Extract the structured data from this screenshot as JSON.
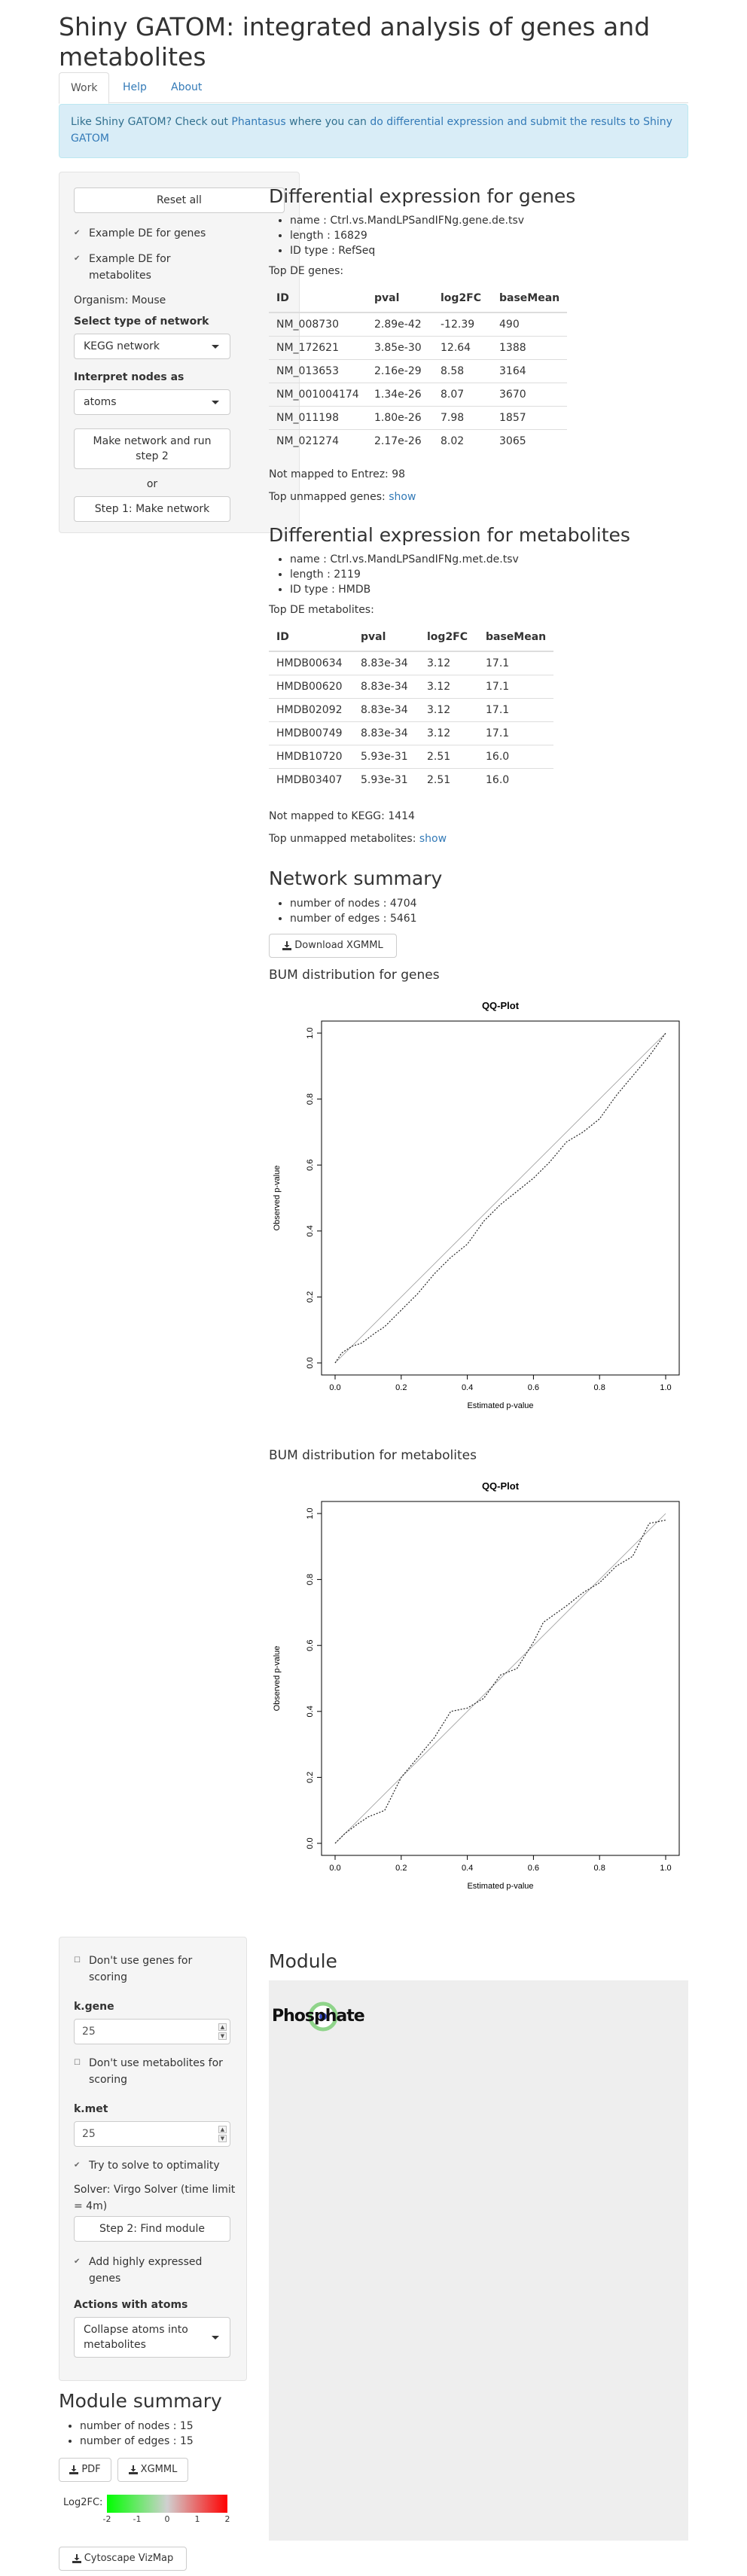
{
  "app": {
    "title": "Shiny GATOM: integrated analysis of genes and metabolites"
  },
  "tabs": [
    {
      "label": "Work"
    },
    {
      "label": "Help"
    },
    {
      "label": "About"
    }
  ],
  "alert": {
    "text_before": "Like Shiny GATOM? Check out ",
    "link1": "Phantasus",
    "text_middle": " where you can ",
    "link2": "do differential expression and submit the results to Shiny GATOM"
  },
  "sidebar1": {
    "reset_label": "Reset all",
    "example_genes": "Example DE for genes",
    "example_metabolites": "Example DE for metabolites",
    "organism": "Organism: Mouse",
    "network_type_label": "Select type of network",
    "network_type_value": "KEGG network",
    "interpret_label": "Interpret nodes as",
    "interpret_value": "atoms",
    "make_run_label": "Make network and run step 2",
    "or_text": "or",
    "step1_label": "Step 1: Make network"
  },
  "genes": {
    "heading": "Differential expression for genes",
    "info": [
      "name : Ctrl.vs.MandLPSandIFNg.gene.de.tsv",
      "length : 16829",
      "ID type : RefSeq"
    ],
    "top_label": "Top DE genes:",
    "columns": [
      "ID",
      "pval",
      "log2FC",
      "baseMean"
    ],
    "rows": [
      [
        "NM_008730",
        "2.89e-42",
        "-12.39",
        "490"
      ],
      [
        "NM_172621",
        "3.85e-30",
        "12.64",
        "1388"
      ],
      [
        "NM_013653",
        "2.16e-29",
        "8.58",
        "3164"
      ],
      [
        "NM_001004174",
        "1.34e-26",
        "8.07",
        "3670"
      ],
      [
        "NM_011198",
        "1.80e-26",
        "7.98",
        "1857"
      ],
      [
        "NM_021274",
        "2.17e-26",
        "8.02",
        "3065"
      ]
    ],
    "not_mapped": "Not mapped to Entrez: 98",
    "unmapped_label": "Top unmapped genes: ",
    "show_link": "show"
  },
  "metabolites": {
    "heading": "Differential expression for metabolites",
    "info": [
      "name : Ctrl.vs.MandLPSandIFNg.met.de.tsv",
      "length : 2119",
      "ID type : HMDB"
    ],
    "top_label": "Top DE metabolites:",
    "columns": [
      "ID",
      "pval",
      "log2FC",
      "baseMean"
    ],
    "rows": [
      [
        "HMDB00634",
        "8.83e-34",
        "3.12",
        "17.1"
      ],
      [
        "HMDB00620",
        "8.83e-34",
        "3.12",
        "17.1"
      ],
      [
        "HMDB02092",
        "8.83e-34",
        "3.12",
        "17.1"
      ],
      [
        "HMDB00749",
        "8.83e-34",
        "3.12",
        "17.1"
      ],
      [
        "HMDB10720",
        "5.93e-31",
        "2.51",
        "16.0"
      ],
      [
        "HMDB03407",
        "5.93e-31",
        "2.51",
        "16.0"
      ]
    ],
    "not_mapped": "Not mapped to KEGG: 1414",
    "unmapped_label": "Top unmapped metabolites: ",
    "show_link": "show"
  },
  "network": {
    "heading": "Network summary",
    "info": [
      "number of nodes : 4704",
      "number of edges : 5461"
    ],
    "download_label": "Download XGMML",
    "bum_genes_label": "BUM distribution for genes",
    "bum_met_label": "BUM distribution for metabolites"
  },
  "chart_data": [
    {
      "type": "line",
      "title": "QQ-Plot",
      "xlabel": "Estimated p-value",
      "ylabel": "Observed p-value",
      "xlim": [
        0,
        1
      ],
      "ylim": [
        0,
        1
      ],
      "xticks": [
        "0.0",
        "0.2",
        "0.4",
        "0.6",
        "0.8",
        "1.0"
      ],
      "yticks": [
        "0.0",
        "0.2",
        "0.4",
        "0.6",
        "0.8",
        "1.0"
      ],
      "reference_line": [
        [
          0,
          0
        ],
        [
          1,
          1
        ]
      ],
      "x": [
        0.0,
        0.02,
        0.05,
        0.08,
        0.12,
        0.15,
        0.2,
        0.25,
        0.3,
        0.35,
        0.4,
        0.45,
        0.5,
        0.55,
        0.6,
        0.65,
        0.7,
        0.75,
        0.8,
        0.85,
        0.9,
        0.95,
        1.0
      ],
      "y": [
        0.0,
        0.03,
        0.05,
        0.06,
        0.09,
        0.11,
        0.16,
        0.21,
        0.27,
        0.32,
        0.36,
        0.43,
        0.48,
        0.52,
        0.56,
        0.61,
        0.67,
        0.7,
        0.74,
        0.81,
        0.87,
        0.93,
        1.0
      ]
    },
    {
      "type": "line",
      "title": "QQ-Plot",
      "xlabel": "Estimated p-value",
      "ylabel": "Observed p-value",
      "xlim": [
        0,
        1
      ],
      "ylim": [
        0,
        1
      ],
      "xticks": [
        "0.0",
        "0.2",
        "0.4",
        "0.6",
        "0.8",
        "1.0"
      ],
      "yticks": [
        "0.0",
        "0.2",
        "0.4",
        "0.6",
        "0.8",
        "1.0"
      ],
      "reference_line": [
        [
          0,
          0
        ],
        [
          1,
          1
        ]
      ],
      "x": [
        0.0,
        0.03,
        0.07,
        0.1,
        0.15,
        0.2,
        0.25,
        0.3,
        0.35,
        0.4,
        0.45,
        0.5,
        0.55,
        0.6,
        0.63,
        0.7,
        0.75,
        0.8,
        0.85,
        0.9,
        0.95,
        1.0
      ],
      "y": [
        0.0,
        0.03,
        0.06,
        0.08,
        0.1,
        0.2,
        0.26,
        0.32,
        0.4,
        0.41,
        0.44,
        0.51,
        0.53,
        0.61,
        0.67,
        0.72,
        0.76,
        0.79,
        0.84,
        0.87,
        0.97,
        0.98
      ]
    }
  ],
  "sidebar2": {
    "dont_use_genes": "Don't use genes for scoring",
    "kgene_label": "k.gene",
    "kgene_value": "25",
    "dont_use_mets": "Don't use metabolites for scoring",
    "kmet_label": "k.met",
    "kmet_value": "25",
    "optimality": "Try to solve to optimality",
    "solver": "Solver: Virgo Solver (time limit = 4m)",
    "step2_label": "Step 2: Find module",
    "add_highly": "Add highly expressed genes",
    "actions_label": "Actions with atoms",
    "actions_value": "Collapse atoms into metabolites"
  },
  "module": {
    "heading": "Module",
    "node_text": "Phosphate"
  },
  "module_summary": {
    "heading": "Module summary",
    "info": [
      "number of nodes : 15",
      "number of edges : 15"
    ],
    "pdf_label": "PDF",
    "xgmml_label": "XGMML",
    "legend_label": "Log2FC:",
    "legend_ticks": [
      "-2",
      "-1",
      "0",
      "1",
      "2"
    ],
    "cytoscape_label": "Cytoscape VizMap"
  }
}
